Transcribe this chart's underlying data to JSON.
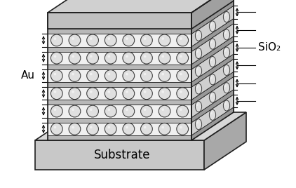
{
  "fig_width": 4.22,
  "fig_height": 2.68,
  "dpi": 100,
  "bg_color": "#ffffff",
  "substrate_front_color": "#c8c8c8",
  "substrate_side_color": "#a8a8a8",
  "substrate_top_color": "#d8d8d8",
  "slab_front_color": "#b8b8b8",
  "slab_side_color": "#989898",
  "cap_front_color": "#c0c0c0",
  "cap_side_color": "#a0a0a0",
  "cap_top_color": "#d0d0d0",
  "sphere_fill_color": "#e0e0e0",
  "sphere_edge_color": "#404040",
  "border_color": "#202020",
  "text_color": "#000000",
  "label_au": "Au",
  "label_sio2": "SiO₂",
  "label_substrate": "Substrate",
  "n_layers": 6,
  "n_spheres_front": 8,
  "n_spheres_side": 3
}
